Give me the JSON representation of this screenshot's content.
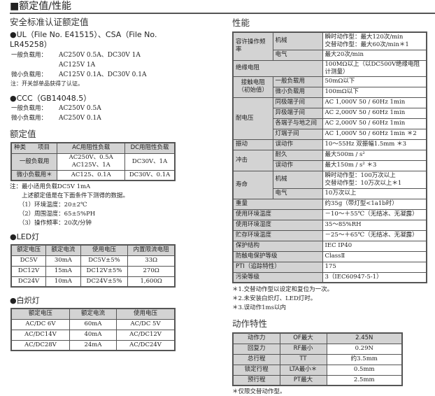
{
  "title": "■额定值/性能",
  "cert": {
    "heading": "安全标准认证额定值",
    "ul": "●UL（File No. E41515）、CSA（File No. LR45258）",
    "ul_lines": [
      [
        "一般负载用：",
        "AC250V 0.5A、DC30V 1A"
      ],
      [
        "",
        "AC125V 1A"
      ],
      [
        "微小负载用：",
        "AC125V 0.1A、DC30V 0.1A"
      ]
    ],
    "ul_note": "注：开关部单品获得了认证。",
    "ccc": "●CCC（GB14048.5）",
    "ccc_lines": [
      [
        "一般负载用：",
        "AC250V 0.5A"
      ],
      [
        "微小负载用：",
        "AC250V 0.1A"
      ]
    ]
  },
  "rating": {
    "heading": "额定值",
    "header": [
      "种类　　项目",
      "AC用阻性负载",
      "DC用阻性负载"
    ],
    "rows": [
      [
        "一般负载用",
        "AC250V、0.5A\nAC125V、1A",
        "DC30V、1A"
      ],
      [
        "微小负载用＊",
        "AC125、0.1A",
        "DC30V、0.1A"
      ]
    ],
    "notes": [
      "注：最小适用负载DC5V 1mA",
      "　　上述额定值是在下面条件下测得的数据。",
      "　　（1）环境温度：20±2℃",
      "　　（2）周围湿度：65±5%PH",
      "　　（3）操作频率：20次/分钟"
    ]
  },
  "led": {
    "heading": "●LED灯",
    "header": [
      "额定电压",
      "额定电流",
      "使用电压",
      "内置限流电阻"
    ],
    "rows": [
      [
        "DC5V",
        "30mA",
        "DC5V±5%",
        "33Ω"
      ],
      [
        "DC12V",
        "15mA",
        "DC12V±5%",
        "270Ω"
      ],
      [
        "DC24V",
        "10mA",
        "DC24V±5%",
        "1,600Ω"
      ]
    ]
  },
  "lamp": {
    "heading": "●白炽灯",
    "header": [
      "额定电压",
      "额定电流",
      "使用电压"
    ],
    "rows": [
      [
        "AC/DC 6V",
        "60mA",
        "AC/DC 5V"
      ],
      [
        "AC/DC14V",
        "40mA",
        "AC/DC12V"
      ],
      [
        "AC/DC28V",
        "24mA",
        "AC/DC24V"
      ]
    ]
  },
  "perf": {
    "heading": "性能",
    "groups": [
      {
        "label": "容许操作频率",
        "items": [
          {
            "label": "机械",
            "value": "瞬时动作型：最大120次/min\n交替动作型：最大60次/min＊1"
          },
          {
            "label": "电气",
            "value": "最大20次/min"
          }
        ]
      },
      {
        "label": "绝缘电阻",
        "value": "100MΩ以上（以DC500V绝缘电阻计测量）"
      },
      {
        "label": "接触电阻\n（初始值）",
        "items": [
          {
            "label": "一般负载用",
            "value": "50mΩ以下"
          },
          {
            "label": "微小负载用",
            "value": "100mΩ以下"
          }
        ]
      },
      {
        "label": "耐电压",
        "items": [
          {
            "label": "同极端子间",
            "value": "AC 1,000V 50 / 60Hz 1min"
          },
          {
            "label": "异极端子间",
            "value": "AC 2,000V 50 / 60Hz 1min"
          },
          {
            "label": "各端子与地之间",
            "value": "AC 2,000V 50 / 60Hz 1min"
          },
          {
            "label": "灯端子间",
            "value": "AC 1,000V 50 / 60Hz 1min ＊2"
          }
        ]
      },
      {
        "label": "振动",
        "items": [
          {
            "label": "误动作",
            "value": "10～55Hz 双振幅1.5mm ＊3"
          }
        ]
      },
      {
        "label": "冲击",
        "items": [
          {
            "label": "耐久",
            "value": "最大500m / s²"
          },
          {
            "label": "误动作",
            "value": "最大150m / s² ＊3"
          }
        ]
      },
      {
        "label": "寿命",
        "items": [
          {
            "label": "机械",
            "value": "瞬时动作型：100万次以上\n交替动作型：10万次以上＊1"
          },
          {
            "label": "电气",
            "value": "10万次以上"
          }
        ]
      },
      {
        "label": "重量",
        "value": "约35g（带灯型<1a1b时）"
      },
      {
        "label": "使用环境温度",
        "value": "－10～＋55℃（无结冰、无凝露）"
      },
      {
        "label": "使用环境湿度",
        "value": "35～85%RH"
      },
      {
        "label": "贮存环境温度",
        "value": "－25～＋65℃（无结冰、无凝露）"
      },
      {
        "label": "保护结构",
        "value": "IEC IP40"
      },
      {
        "label": "防触电保护等级",
        "value": "ClassⅡ"
      },
      {
        "label": "PTI（追踪特性）",
        "value": "175"
      },
      {
        "label": "污染等级",
        "value": "3（IEC60947-5-1）"
      }
    ],
    "notes": [
      "＊1.交替动作型以设定和复位为一次。",
      "＊2.未安装白炽灯、LED灯时。",
      "＊3.误动作1ms以内"
    ]
  },
  "action": {
    "heading": "动作特性",
    "rows": [
      [
        "动作力",
        "OF最大",
        "2.45N"
      ],
      [
        "回复力",
        "RF最小",
        "0.29N"
      ],
      [
        "总行程",
        "TT",
        "约3.5mm"
      ],
      [
        "锁定行程",
        "LTA最小＊",
        "0.5mm"
      ],
      [
        "预行程",
        "PT最大",
        "2.5mm"
      ]
    ],
    "note": "＊仅限交替动作型。"
  }
}
